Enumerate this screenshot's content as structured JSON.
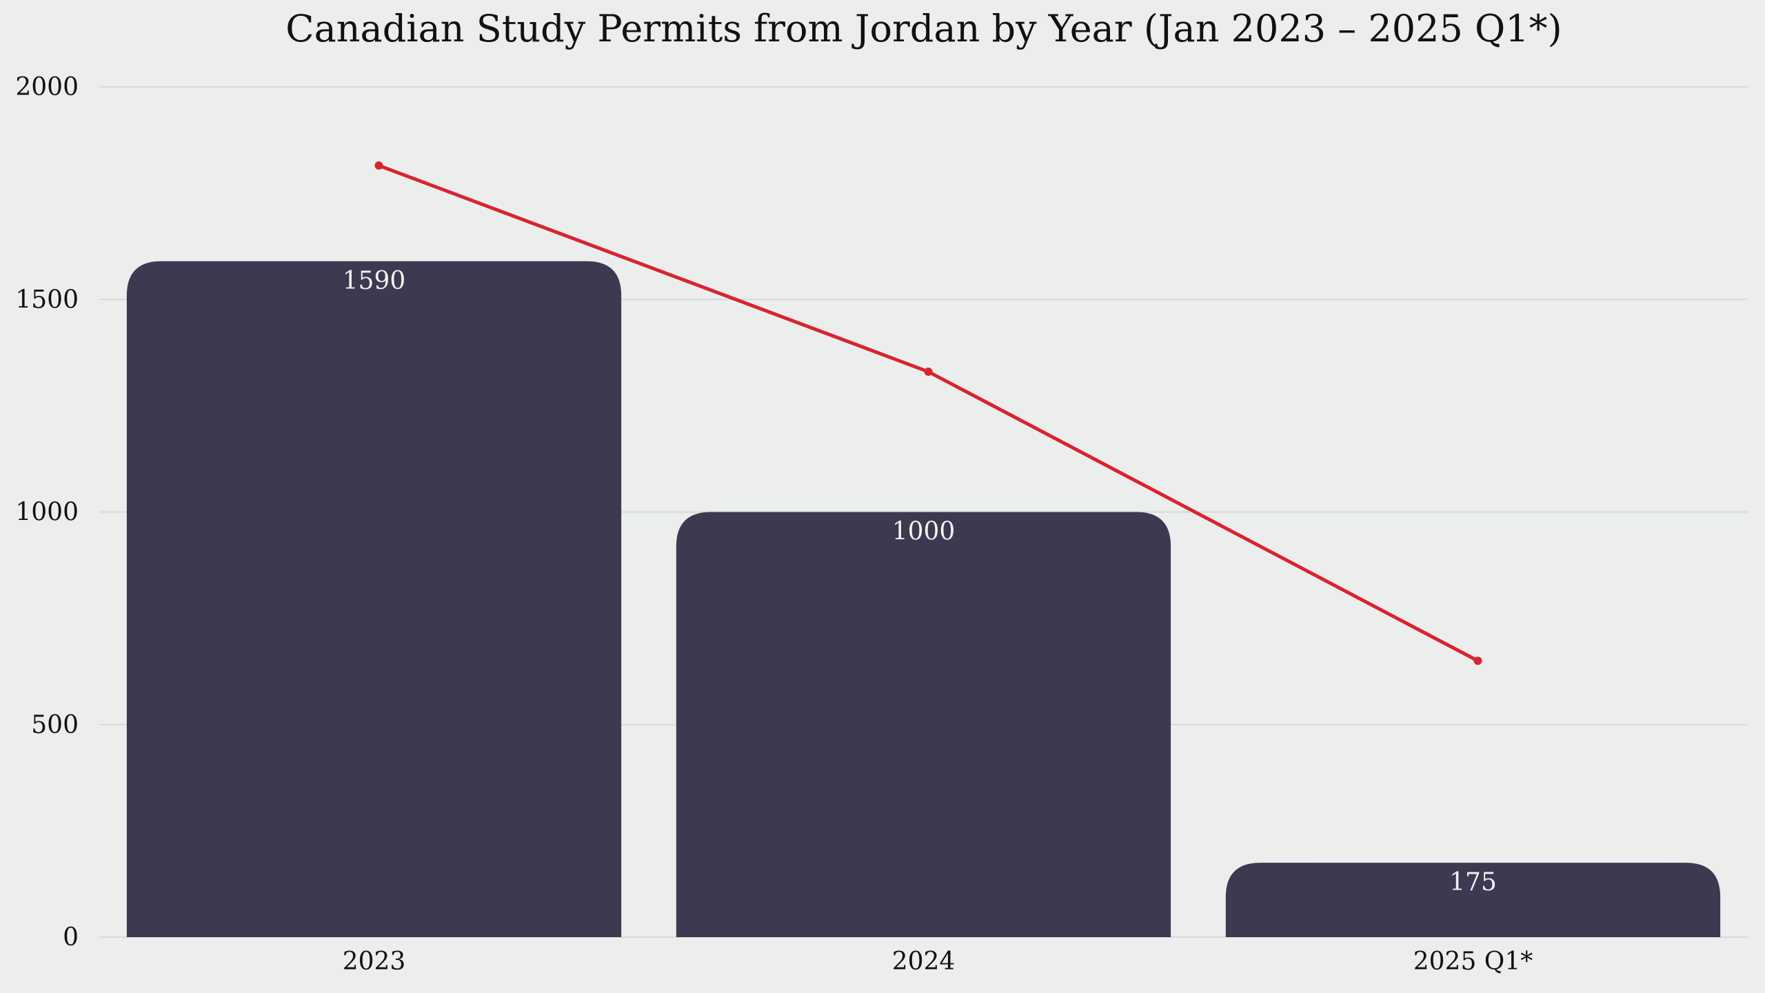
{
  "chart_data": {
    "type": "bar",
    "title": "Canadian Study Permits from Jordan by Year (Jan 2023 – 2025 Q1*)",
    "xlabel": "",
    "ylabel": "",
    "categories": [
      "2023",
      "2024",
      "2025 Q1*"
    ],
    "ylim": [
      0,
      2000
    ],
    "yticks": [
      0,
      500,
      1000,
      1500,
      2000
    ],
    "grid": true,
    "series": [
      {
        "type": "bar",
        "values": [
          1590,
          1000,
          175
        ],
        "color": "#3d3950",
        "data_labels": [
          "1590",
          "1000",
          "175"
        ]
      },
      {
        "type": "line",
        "values": [
          1815,
          1330,
          650
        ],
        "color": "#d9232e"
      }
    ]
  }
}
